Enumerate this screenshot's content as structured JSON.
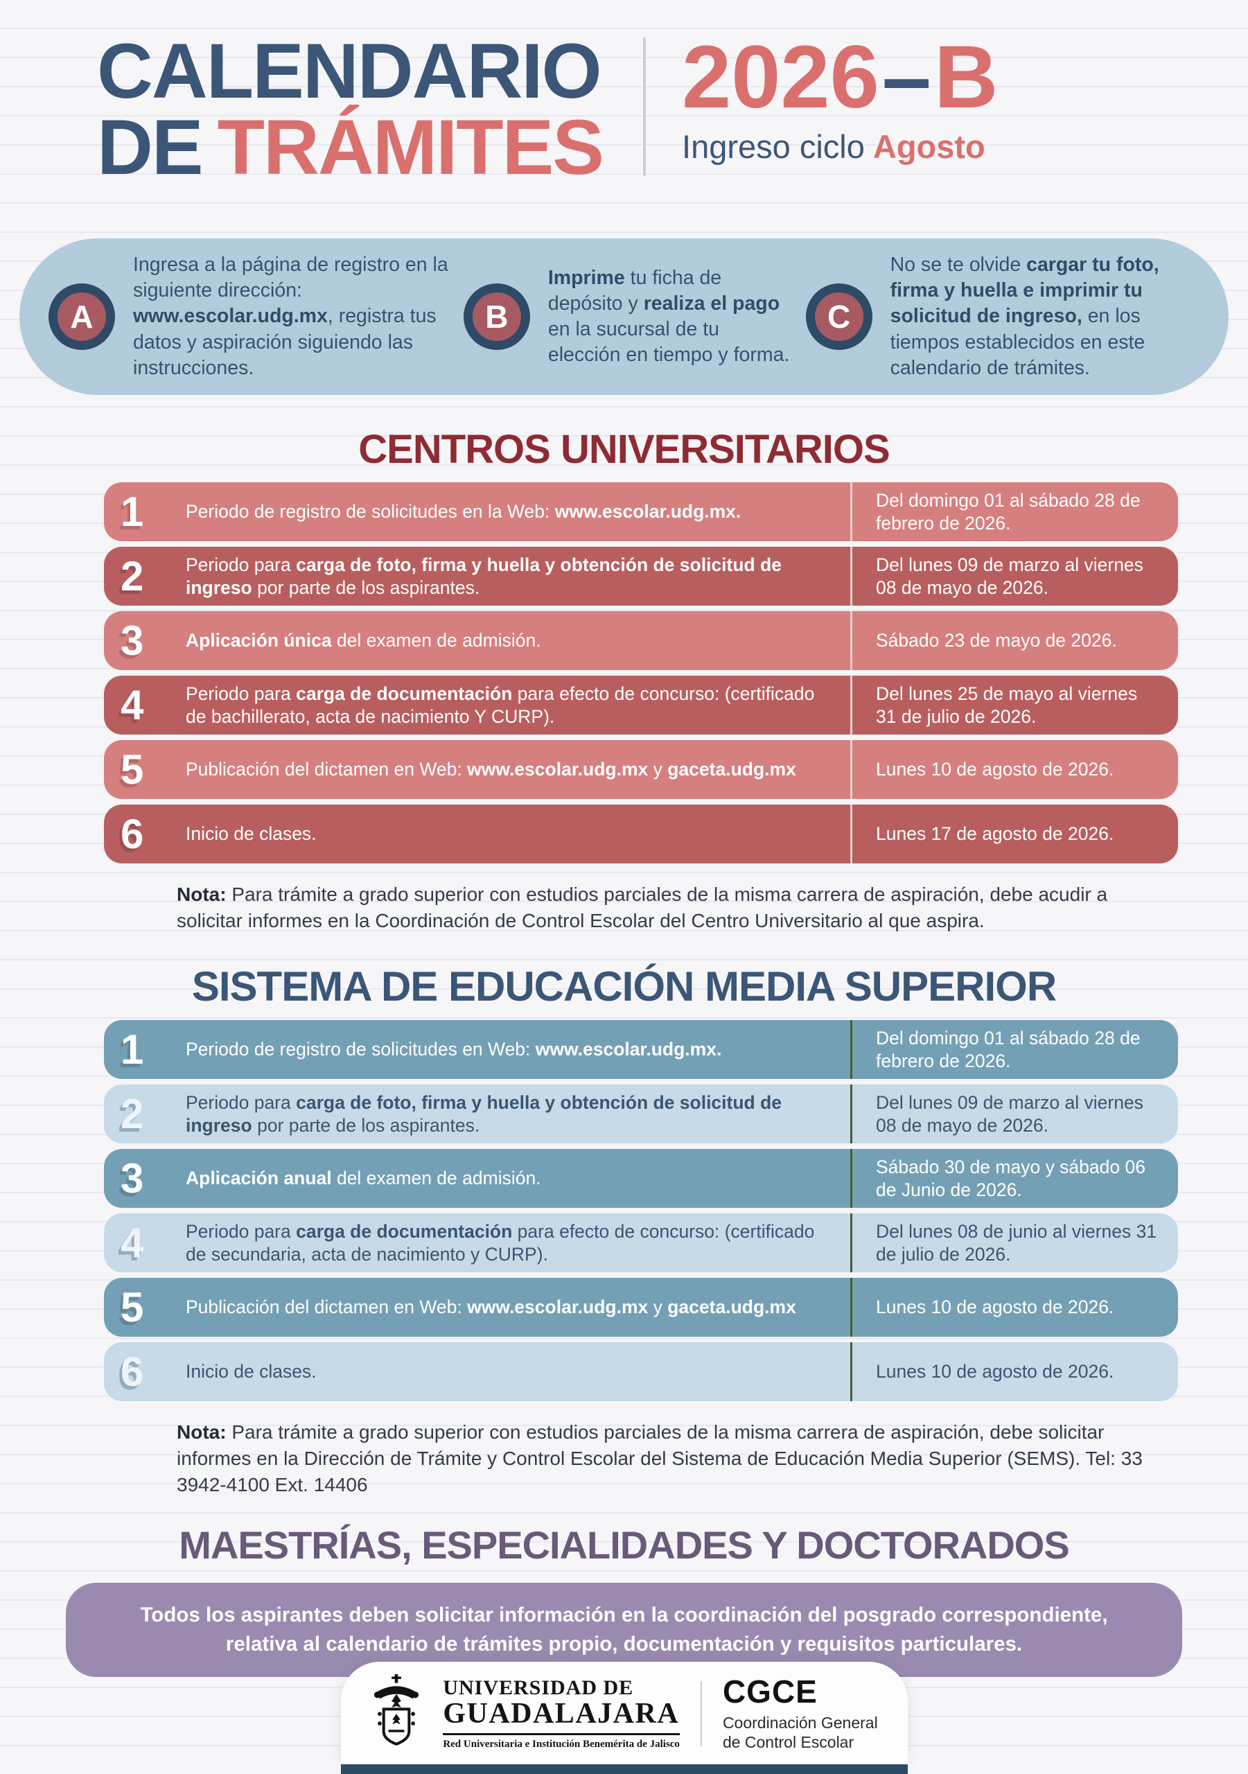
{
  "header": {
    "title_line1": "CALENDARIO",
    "title_line2_prefix": "DE",
    "title_line2_accent": "TRÁMITES",
    "cycle_year": "2026",
    "cycle_dash": "–",
    "cycle_letter": "B",
    "subtitle_prefix": "Ingreso ciclo",
    "subtitle_accent": "Agosto"
  },
  "steps": [
    {
      "letter": "A",
      "text": "Ingresa a la página de registro en la siguiente dirección: <b>www.escolar.udg.mx</b>, registra tus datos y aspiración siguiendo las instrucciones."
    },
    {
      "letter": "B",
      "text": "<b>Imprime</b> tu ficha de depósito y <b>realiza el pago</b> en la sucursal de tu elección en tiempo y forma."
    },
    {
      "letter": "C",
      "text": "No se te olvide <b>cargar tu foto, firma y huella e imprimir tu solicitud de ingreso,</b> en los tiempos establecidos en este calendario de trámites."
    }
  ],
  "sections": {
    "cu": {
      "title": "CENTROS UNIVERSITARIOS",
      "rows": [
        {
          "num": "1",
          "desc": "Periodo de registro de solicitudes en la Web: <b>www.escolar.udg.mx.</b>",
          "date": "Del domingo 01 al sábado 28 de febrero de 2026."
        },
        {
          "num": "2",
          "desc": "Periodo para <b>carga de foto, firma y huella y obtención de solicitud de ingreso</b> por parte de los aspirantes.",
          "date": "Del lunes 09 de marzo al viernes 08 de mayo de 2026."
        },
        {
          "num": "3",
          "desc": "<b>Aplicación única</b> del examen de admisión.",
          "date": "Sábado 23 de mayo de 2026."
        },
        {
          "num": "4",
          "desc": "Periodo para <b>carga de documentación</b> para efecto de concurso: (certificado de bachillerato, acta de nacimiento Y CURP).",
          "date": "Del lunes 25 de mayo al viernes 31 de julio de 2026."
        },
        {
          "num": "5",
          "desc": "Publicación del dictamen en Web: <b>www.escolar.udg.mx</b> y <b>gaceta.udg.mx</b>",
          "date": "Lunes 10 de agosto de 2026."
        },
        {
          "num": "6",
          "desc": "Inicio de clases.",
          "date": "Lunes 17 de agosto de 2026."
        }
      ],
      "note": "<b>Nota:</b> Para trámite a grado superior con estudios parciales de la misma carrera de aspiración, debe acudir a solicitar informes en la Coordinación de Control Escolar del Centro Universitario al que aspira."
    },
    "sems": {
      "title": "SISTEMA DE EDUCACIÓN MEDIA SUPERIOR",
      "rows": [
        {
          "num": "1",
          "desc": "Periodo de registro de solicitudes en Web: <b>www.escolar.udg.mx.</b>",
          "date": "Del domingo 01 al sábado 28 de febrero de 2026."
        },
        {
          "num": "2",
          "desc": "Periodo para <b>carga de foto, firma y huella y obtención de solicitud de ingreso</b> por parte de los aspirantes.",
          "date": "Del lunes 09 de marzo al viernes 08 de mayo de 2026."
        },
        {
          "num": "3",
          "desc": "<b>Aplicación anual</b> del examen de admisión.",
          "date": "Sábado 30 de mayo y sábado 06 de Junio de 2026."
        },
        {
          "num": "4",
          "desc": "Periodo para <b>carga de documentación</b> para efecto de concurso: (certificado de secundaria, acta de nacimiento y CURP).",
          "date": "Del lunes 08 de junio al viernes 31 de julio de 2026."
        },
        {
          "num": "5",
          "desc": "Publicación del dictamen en Web: <b>www.escolar.udg.mx</b> y <b>gaceta.udg.mx</b>",
          "date": "Lunes 10 de agosto de 2026."
        },
        {
          "num": "6",
          "desc": "Inicio de clases.",
          "date": "Lunes 10 de agosto de 2026."
        }
      ],
      "note": "<b>Nota:</b> Para trámite a grado superior con estudios parciales de la misma carrera de aspiración, debe solicitar informes en la Dirección de Trámite y Control Escolar del Sistema de Educación Media Superior (SEMS). Tel: 33 3942-4100 Ext. 14406"
    }
  },
  "posgrado": {
    "title": "MAESTRÍAS, ESPECIALIDADES Y DOCTORADOS",
    "banner": "Todos los aspirantes deben solicitar información en la coordinación del posgrado correspondiente, relativa al calendario de trámites propio, documentación y requisitos particulares."
  },
  "footer": {
    "university_name_line1": "UNIVERSIDAD DE",
    "university_name_line2": "GUADALAJARA",
    "university_tagline": "Red Universitaria e Institución Benemérita de Jalisco",
    "org_acronym": "CGCE",
    "org_name_line1": "Coordinación General",
    "org_name_line2": "de Control Escolar"
  },
  "colors": {
    "navy": "#3b5677",
    "red_accent": "#d9706e",
    "steps_banner_bg": "#b2ccdc",
    "step_circle_fill": "#a85a63",
    "step_circle_ring": "#2d4a66",
    "cu_heading": "#8e2b33",
    "cu_row_light": "#d67f7f",
    "cu_row_dark": "#b95e5e",
    "sems_row_medium": "#74a0b5",
    "sems_row_light": "#c6dae8",
    "sems_divider_green": "#4c5c2e",
    "posgrado_heading": "#695a79",
    "posgrado_banner_bg": "#9a8ab0",
    "bottom_bar_navy": "#2d4a63"
  }
}
